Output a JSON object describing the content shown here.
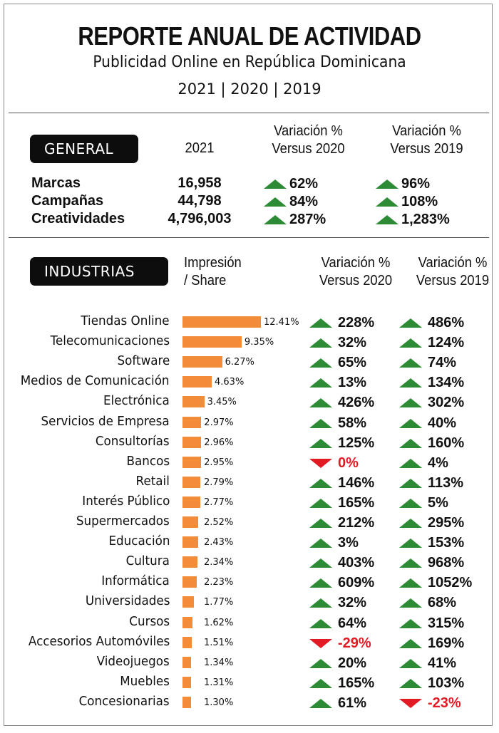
{
  "header": {
    "title": "REPORTE ANUAL DE ACTIVIDAD",
    "subtitle": "Publicidad Online en República Dominicana",
    "years": "2021 | 2020 | 2019"
  },
  "general": {
    "badge": "GENERAL",
    "col_year": "2021",
    "col_var2020": [
      "Variación %",
      "Versus 2020"
    ],
    "col_var2019": [
      "Variación %",
      "Versus 2019"
    ],
    "rows": [
      {
        "label": "Marcas",
        "value": "16,958",
        "v2020": "62%",
        "v2020_dir": "up",
        "v2019": "96%",
        "v2019_dir": "up"
      },
      {
        "label": "Campañas",
        "value": "44,798",
        "v2020": "84%",
        "v2020_dir": "up",
        "v2019": "108%",
        "v2019_dir": "up"
      },
      {
        "label": "Creatividades",
        "value": "4,796,003",
        "v2020": "287%",
        "v2020_dir": "up",
        "v2019": "1,283%",
        "v2019_dir": "up"
      }
    ]
  },
  "industries": {
    "badge": "INDUSTRIAS",
    "col_share": [
      "Impresión",
      "/ Share"
    ],
    "col_var2020": [
      "Variación %",
      "Versus 2020"
    ],
    "col_var2019": [
      "Variación %",
      "Versus 2019"
    ]
  },
  "colors": {
    "bar": "#f28c38",
    "up": "#2d8a35",
    "down": "#e11a24",
    "badge": "#0d0d0d"
  },
  "chart_data": {
    "type": "bar",
    "orientation": "horizontal",
    "categories": [
      "Tiendas Online",
      "Telecomunicaciones",
      "Software",
      "Medios de Comunicación",
      "Electrónica",
      "Servicios de Empresa",
      "Consultorías",
      "Bancos",
      "Retail",
      "Interés Público",
      "Supermercados",
      "Educación",
      "Cultura",
      "Informática",
      "Universidades",
      "Cursos",
      "Accesorios Automóviles",
      "Videojuegos",
      "Muebles",
      "Concesionarias"
    ],
    "values": [
      12.41,
      9.35,
      6.27,
      4.63,
      3.45,
      2.97,
      2.96,
      2.95,
      2.79,
      2.77,
      2.52,
      2.43,
      2.34,
      2.23,
      1.77,
      1.62,
      1.51,
      1.34,
      1.31,
      1.3
    ],
    "value_labels": [
      "12.41%",
      "9.35%",
      "6.27%",
      "4.63%",
      "3.45%",
      "2.97%",
      "2.96%",
      "2.95%",
      "2.79%",
      "2.77%",
      "2.52%",
      "2.43%",
      "2.34%",
      "2.23%",
      "1.77%",
      "1.62%",
      "1.51%",
      "1.34%",
      "1.31%",
      "1.30%"
    ],
    "var_2020": [
      "228%",
      "32%",
      "65%",
      "13%",
      "426%",
      "58%",
      "125%",
      "0%",
      "146%",
      "165%",
      "212%",
      "3%",
      "403%",
      "609%",
      "32%",
      "64%",
      "-29%",
      "20%",
      "165%",
      "61%"
    ],
    "var_2020_dir": [
      "up",
      "up",
      "up",
      "up",
      "up",
      "up",
      "up",
      "down",
      "up",
      "up",
      "up",
      "up",
      "up",
      "up",
      "up",
      "up",
      "down",
      "up",
      "up",
      "up"
    ],
    "var_2019": [
      "486%",
      "124%",
      "74%",
      "134%",
      "302%",
      "40%",
      "160%",
      "4%",
      "113%",
      "5%",
      "295%",
      "153%",
      "968%",
      "1052%",
      "68%",
      "315%",
      "169%",
      "41%",
      "103%",
      "-23%"
    ],
    "var_2019_dir": [
      "up",
      "up",
      "up",
      "up",
      "up",
      "up",
      "up",
      "up",
      "up",
      "up",
      "up",
      "up",
      "up",
      "up",
      "up",
      "up",
      "up",
      "up",
      "up",
      "down"
    ],
    "unit": "%"
  }
}
